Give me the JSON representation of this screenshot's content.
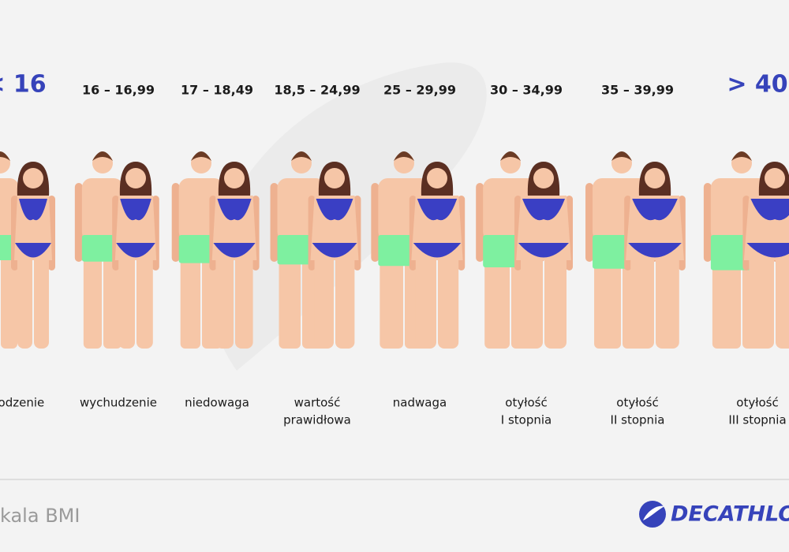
{
  "columns": [
    {
      "range": "< 16",
      "label": [
        "głodzenie"
      ]
    },
    {
      "range": "16 – 16,99",
      "label": [
        "wychudzenie"
      ]
    },
    {
      "range": "17 – 18,49",
      "label": [
        "niedowaga"
      ]
    },
    {
      "range": "18,5 – 24,99",
      "label": [
        "wartość",
        "prawidłowa"
      ]
    },
    {
      "range": "25 – 29,99",
      "label": [
        "nadwaga"
      ]
    },
    {
      "range": "30 – 34,99",
      "label": [
        "otyłość",
        "I stopnia"
      ]
    },
    {
      "range": "35 – 39,99",
      "label": [
        "otyłość",
        "II stopnia"
      ]
    },
    {
      "range": "> 40",
      "label": [
        "otyłość",
        "III stopnia"
      ]
    }
  ],
  "footer": {
    "title": "kala BMI",
    "brand": "DECATHLO"
  }
}
